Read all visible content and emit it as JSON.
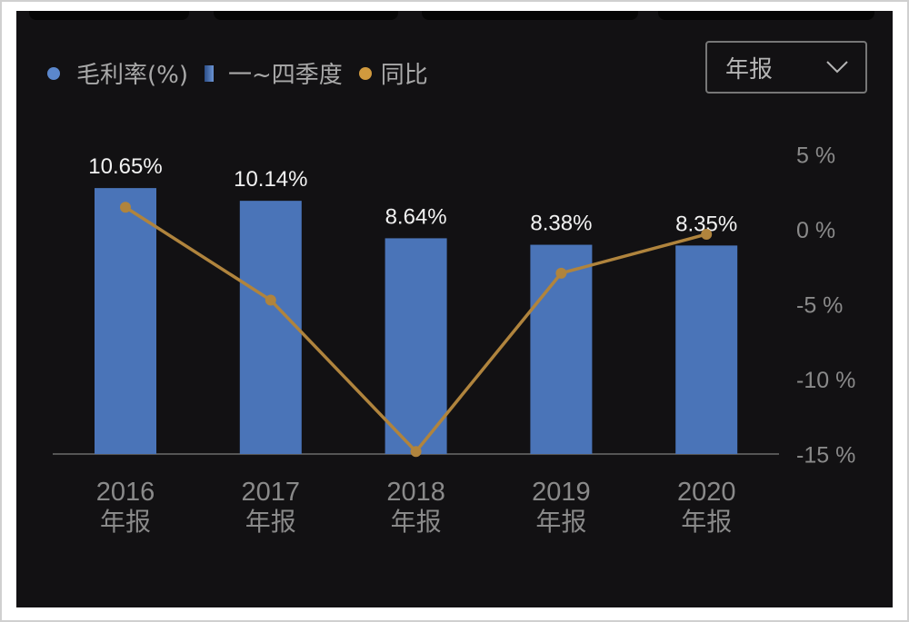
{
  "legend": {
    "items": [
      {
        "label": "毛利率(%)",
        "marker": "dot",
        "color": "#5b87cc"
      },
      {
        "label": "一~四季度",
        "marker": "gradient-square",
        "color": "#4a74b8"
      },
      {
        "label": "同比",
        "marker": "dot",
        "color": "#d19a3e"
      }
    ]
  },
  "period_select": {
    "value": "年报",
    "icon": "chevron-down-icon"
  },
  "chart_data": {
    "type": "bar+line",
    "categories": [
      "2016\n年报",
      "2017\n年报",
      "2018\n年报",
      "2019\n年报",
      "2020\n年报"
    ],
    "category_years": [
      "2016",
      "2017",
      "2018",
      "2019",
      "2020"
    ],
    "category_suffix": "年报",
    "series": [
      {
        "name": "毛利率(%)",
        "type": "bar",
        "axis": "left",
        "values": [
          10.65,
          10.14,
          8.64,
          8.38,
          8.35
        ],
        "labels": [
          "10.65%",
          "10.14%",
          "8.64%",
          "8.38%",
          "8.35%"
        ],
        "color": "#4a74b8"
      },
      {
        "name": "同比",
        "type": "line",
        "axis": "right",
        "values": [
          1.5,
          -4.7,
          -14.8,
          -2.9,
          -0.3
        ],
        "color": "#b0843d"
      }
    ],
    "right_axis": {
      "ticks": [
        5,
        0,
        -5,
        -10,
        -15
      ],
      "tick_labels": [
        "5 %",
        "0 %",
        "-5 %",
        "-10 %",
        "-15 %"
      ],
      "range": [
        -15,
        5
      ]
    },
    "left_axis": {
      "visible": false,
      "range": [
        0,
        10.65
      ]
    },
    "grid": false,
    "legend_position": "top-left"
  }
}
